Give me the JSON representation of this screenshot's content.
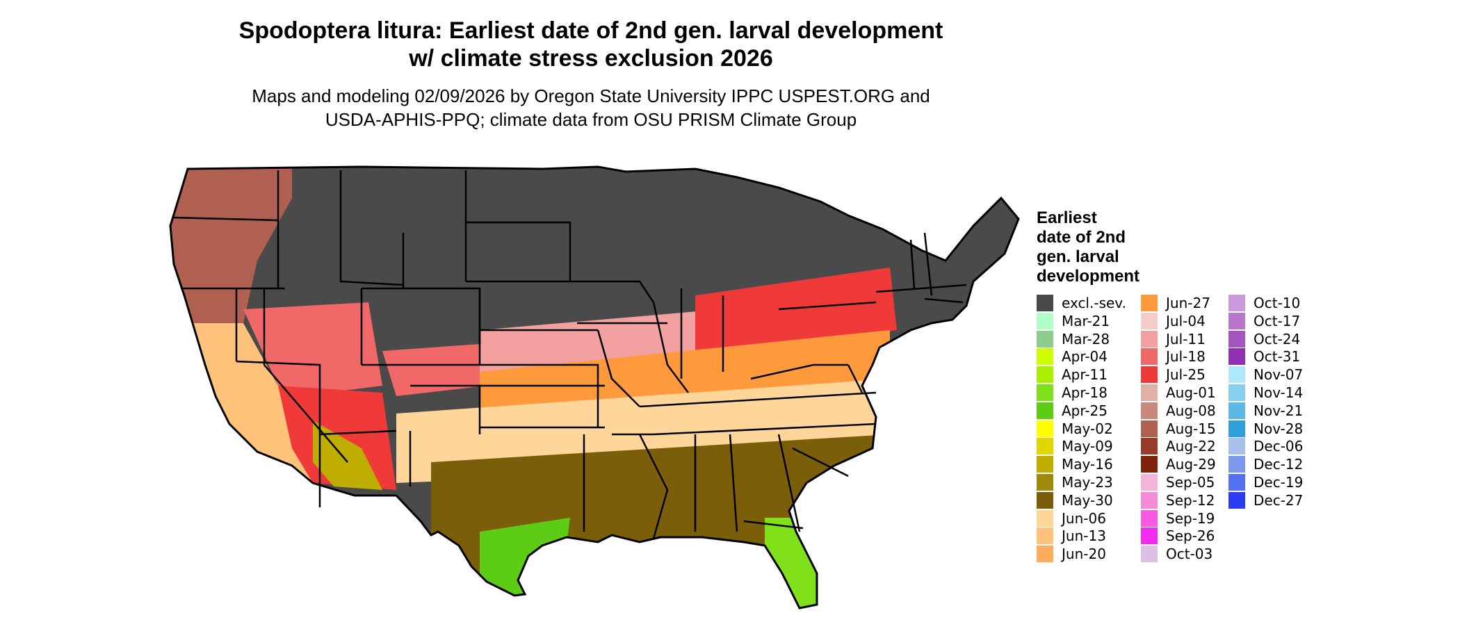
{
  "title": {
    "line1": "Spodoptera litura: Earliest date of 2nd gen. larval development",
    "line2": "w/ climate stress exclusion 2026"
  },
  "subtitle": {
    "line1": "Maps and modeling 02/09/2026 by Oregon State University IPPC USPEST.ORG and",
    "line2": "USDA-APHIS-PPQ; climate data from OSU PRISM Climate Group"
  },
  "legend": {
    "title_lines": [
      "Earliest",
      "date of 2nd",
      "gen. larval",
      "development"
    ],
    "columns": [
      [
        {
          "label": "excl.-sev.",
          "color": "#4a4a4a"
        },
        {
          "label": "Mar-21",
          "color": "#b3ffc8"
        },
        {
          "label": "Mar-28",
          "color": "#8ccc8c"
        },
        {
          "label": "Apr-04",
          "color": "#ccff00"
        },
        {
          "label": "Apr-11",
          "color": "#a6f000"
        },
        {
          "label": "Apr-18",
          "color": "#80e01a"
        },
        {
          "label": "Apr-25",
          "color": "#5ccc14"
        },
        {
          "label": "May-02",
          "color": "#ffff00"
        },
        {
          "label": "May-09",
          "color": "#e0d600"
        },
        {
          "label": "May-16",
          "color": "#bfae00"
        },
        {
          "label": "May-23",
          "color": "#9e8a0c"
        },
        {
          "label": "May-30",
          "color": "#7a5e0a"
        },
        {
          "label": "Jun-06",
          "color": "#ffd699"
        },
        {
          "label": "Jun-13",
          "color": "#ffc27a"
        },
        {
          "label": "Jun-20",
          "color": "#ffad5c"
        }
      ],
      [
        {
          "label": "Jun-27",
          "color": "#ff9a3c"
        },
        {
          "label": "Jul-04",
          "color": "#f5cccc"
        },
        {
          "label": "Jul-11",
          "color": "#f2a0a0"
        },
        {
          "label": "Jul-18",
          "color": "#f06868"
        },
        {
          "label": "Jul-25",
          "color": "#f03a3a"
        },
        {
          "label": "Aug-01",
          "color": "#e0b0a6"
        },
        {
          "label": "Aug-08",
          "color": "#c88a7c"
        },
        {
          "label": "Aug-15",
          "color": "#b06050"
        },
        {
          "label": "Aug-22",
          "color": "#983c2a"
        },
        {
          "label": "Aug-29",
          "color": "#80220c"
        },
        {
          "label": "Sep-05",
          "color": "#f5b3d9"
        },
        {
          "label": "Sep-12",
          "color": "#f58ad9"
        },
        {
          "label": "Sep-19",
          "color": "#f55ae0"
        },
        {
          "label": "Sep-26",
          "color": "#f52af0"
        },
        {
          "label": "Oct-03",
          "color": "#dcc0e6"
        }
      ],
      [
        {
          "label": "Oct-10",
          "color": "#cc99dd"
        },
        {
          "label": "Oct-17",
          "color": "#b877cc"
        },
        {
          "label": "Oct-24",
          "color": "#a455c0"
        },
        {
          "label": "Oct-31",
          "color": "#9030b3"
        },
        {
          "label": "Nov-07",
          "color": "#b0e8fb"
        },
        {
          "label": "Nov-14",
          "color": "#88d0f0"
        },
        {
          "label": "Nov-21",
          "color": "#5cb8e6"
        },
        {
          "label": "Nov-28",
          "color": "#2ea0dd"
        },
        {
          "label": "Dec-06",
          "color": "#a8c0ec"
        },
        {
          "label": "Dec-12",
          "color": "#7c98ec"
        },
        {
          "label": "Dec-19",
          "color": "#5470f0"
        },
        {
          "label": "Dec-27",
          "color": "#2a3cf5"
        }
      ]
    ]
  }
}
